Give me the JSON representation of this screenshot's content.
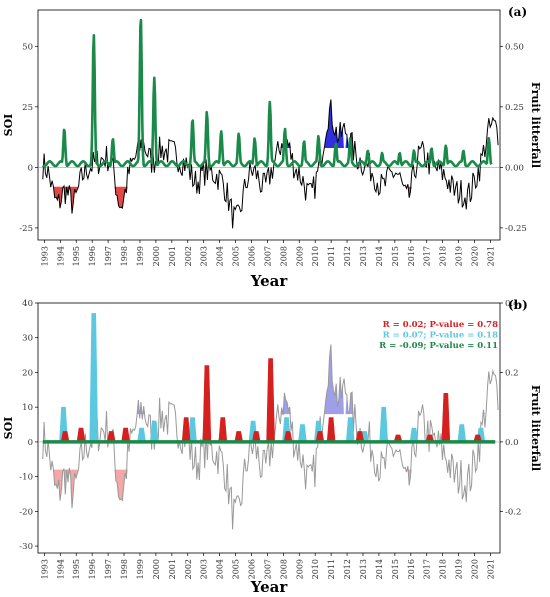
{
  "chart_data": [
    {
      "panel": "(a)",
      "type": "line",
      "xlabel": "Year",
      "ylabel_left": "SOI",
      "ylabel_right": "Fruit litterfall",
      "x_ticks": [
        "1993",
        "1994",
        "1995",
        "1996",
        "1997",
        "1998",
        "1999",
        "2000",
        "2001",
        "2002",
        "2003",
        "2004",
        "2005",
        "2006",
        "2007",
        "2008",
        "2009",
        "2010",
        "2011",
        "2012",
        "2013",
        "2014",
        "2015",
        "2016",
        "2017",
        "2018",
        "2019",
        "2020",
        "2021"
      ],
      "ylim_left": [
        -30,
        65
      ],
      "ylim_right": [
        -0.3,
        0.65
      ],
      "yticks_left": [
        "50",
        "25",
        "0",
        "-25"
      ],
      "yticks_right": [
        "0.50",
        "0.25",
        "0.00",
        "-0.25"
      ],
      "series": [
        {
          "color": "#1a8a4a",
          "axis": "right",
          "peaks": [
            {
              "year": 1994.25,
              "value": 0.16
            },
            {
              "year": 1996.1,
              "value": 0.55
            },
            {
              "year": 1997.3,
              "value": 0.12
            },
            {
              "year": 1999.05,
              "value": 0.63
            },
            {
              "year": 1999.9,
              "value": 0.37
            },
            {
              "year": 2002.3,
              "value": 0.2
            },
            {
              "year": 2003.2,
              "value": 0.23
            },
            {
              "year": 2004.1,
              "value": 0.15
            },
            {
              "year": 2005.2,
              "value": 0.14
            },
            {
              "year": 2006.2,
              "value": 0.12
            },
            {
              "year": 2007.15,
              "value": 0.27
            },
            {
              "year": 2008.1,
              "value": 0.16
            },
            {
              "year": 2009.3,
              "value": 0.11
            },
            {
              "year": 2010.2,
              "value": 0.13
            },
            {
              "year": 2011.3,
              "value": 0.1
            },
            {
              "year": 2012.2,
              "value": 0.12
            },
            {
              "year": 2013.3,
              "value": 0.07
            },
            {
              "year": 2014.2,
              "value": 0.06
            },
            {
              "year": 2015.3,
              "value": 0.06
            },
            {
              "year": 2016.2,
              "value": 0.07
            },
            {
              "year": 2017.3,
              "value": 0.08
            },
            {
              "year": 2018.2,
              "value": 0.09
            },
            {
              "year": 2019.3,
              "value": 0.07
            },
            {
              "year": 2020.9,
              "value": 0.12
            }
          ]
        },
        {
          "color": "#000000",
          "axis": "left"
        }
      ],
      "shaded_negative_periods": [
        [
          1993.3,
          1994.6
        ],
        [
          1994.5,
          1995.2
        ],
        [
          1997.3,
          1998.5
        ],
        [
          2010.3,
          2010.6
        ],
        [
          2015.3,
          2016.3
        ]
      ],
      "shaded_positive_periods": [
        [
          1998.8,
          1999.6
        ],
        [
          2007.8,
          2008.6
        ],
        [
          2010.6,
          2011.8
        ],
        [
          2011.9,
          2012.4
        ]
      ]
    },
    {
      "panel": "(b)",
      "type": "line",
      "xlabel": "Year",
      "ylabel_left": "SOI",
      "ylabel_right": "Fruit litterfall",
      "x_ticks": [
        "1993",
        "1994",
        "1995",
        "1996",
        "1997",
        "1998",
        "1999",
        "2000",
        "2001",
        "2002",
        "2003",
        "2004",
        "2005",
        "2006",
        "2007",
        "2008",
        "2009",
        "2010",
        "2011",
        "2012",
        "2013",
        "2014",
        "2015",
        "2016",
        "2017",
        "2018",
        "2019",
        "2020",
        "2021"
      ],
      "ylim_left": [
        -32,
        40
      ],
      "ylim_right": [
        -0.32,
        0.4
      ],
      "yticks_left": [
        "40",
        "30",
        "20",
        "10",
        "0",
        "-10",
        "-20",
        "-30"
      ],
      "yticks_right": [
        "0.4",
        "0.2",
        "0.0",
        "-0.2"
      ],
      "legend": [
        {
          "text": "R = 0.02; P-value = 0.78",
          "color": "#d62020"
        },
        {
          "text": "R = 0.07; P-value = 0.18",
          "color": "#5bc8e0"
        },
        {
          "text": "R = -0.09; P-value = 0.11",
          "color": "#1a8a4a"
        }
      ],
      "series": [
        {
          "color": "#d62020",
          "axis": "right",
          "peaks": [
            {
              "year": 1994.3,
              "value": 0.03
            },
            {
              "year": 1995.3,
              "value": 0.04
            },
            {
              "year": 1997.2,
              "value": 0.03
            },
            {
              "year": 1998.1,
              "value": 0.04
            },
            {
              "year": 2001.9,
              "value": 0.07
            },
            {
              "year": 2003.2,
              "value": 0.22
            },
            {
              "year": 2004.2,
              "value": 0.07
            },
            {
              "year": 2005.2,
              "value": 0.03
            },
            {
              "year": 2006.3,
              "value": 0.03
            },
            {
              "year": 2007.2,
              "value": 0.24
            },
            {
              "year": 2008.3,
              "value": 0.03
            },
            {
              "year": 2010.3,
              "value": 0.03
            },
            {
              "year": 2011.0,
              "value": 0.07
            },
            {
              "year": 2012.8,
              "value": 0.03
            },
            {
              "year": 2015.2,
              "value": 0.02
            },
            {
              "year": 2017.2,
              "value": 0.02
            },
            {
              "year": 2018.2,
              "value": 0.14
            },
            {
              "year": 2020.2,
              "value": 0.02
            }
          ]
        },
        {
          "color": "#5bc8e0",
          "axis": "right",
          "peaks": [
            {
              "year": 1994.2,
              "value": 0.1
            },
            {
              "year": 1996.1,
              "value": 0.37
            },
            {
              "year": 1999.1,
              "value": 0.04
            },
            {
              "year": 1999.9,
              "value": 0.06
            },
            {
              "year": 2002.3,
              "value": 0.07
            },
            {
              "year": 2004.2,
              "value": 0.05
            },
            {
              "year": 2006.1,
              "value": 0.06
            },
            {
              "year": 2008.2,
              "value": 0.07
            },
            {
              "year": 2009.2,
              "value": 0.05
            },
            {
              "year": 2010.2,
              "value": 0.06
            },
            {
              "year": 2012.2,
              "value": 0.07
            },
            {
              "year": 2013.1,
              "value": 0.03
            },
            {
              "year": 2014.3,
              "value": 0.1
            },
            {
              "year": 2016.2,
              "value": 0.04
            },
            {
              "year": 2019.2,
              "value": 0.05
            },
            {
              "year": 2020.4,
              "value": 0.04
            }
          ]
        },
        {
          "color": "#1a8a4a",
          "axis": "right"
        },
        {
          "color": "#999999",
          "axis": "left"
        }
      ],
      "shaded_negative_periods": [
        [
          1993.3,
          1994.6
        ],
        [
          1994.5,
          1995.2
        ],
        [
          1997.3,
          1998.5
        ],
        [
          2010.3,
          2010.6
        ],
        [
          2015.3,
          2016.3
        ]
      ],
      "shaded_positive_periods": [
        [
          1998.8,
          1999.6
        ],
        [
          2007.8,
          2008.6
        ],
        [
          2010.6,
          2011.8
        ],
        [
          2011.9,
          2012.4
        ],
        [
          2020.2,
          2020.7
        ]
      ]
    }
  ]
}
